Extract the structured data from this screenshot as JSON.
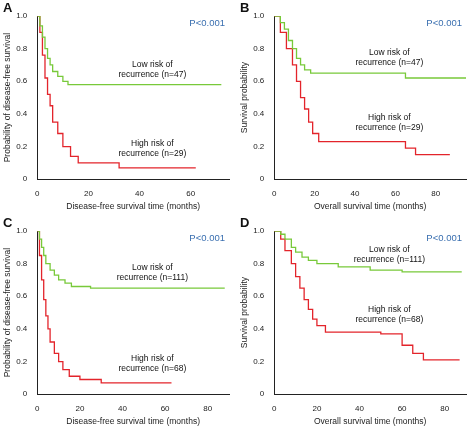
{
  "chart_data": [
    {
      "type": "line",
      "title": "A",
      "annotation": "P<0.001",
      "x_label": "Disease-free survival time (months)",
      "y_label": "Probability of disease-free survival",
      "xlim": [
        0,
        75
      ],
      "xticks": [
        0,
        20,
        40,
        60
      ],
      "ylim": [
        0,
        1
      ],
      "yticks": [
        0,
        0.2,
        0.4,
        0.6,
        0.8,
        {
          "value": 1,
          "label": "1.0"
        }
      ],
      "grid": false,
      "legend": false,
      "line_style": "stepped",
      "series": [
        {
          "name": "Low risk of recurrence (n=47)",
          "color": "#78c93a",
          "x": [
            0,
            1,
            2,
            3,
            4,
            5,
            6,
            8,
            10,
            12,
            72
          ],
          "values": [
            1,
            0.94,
            0.87,
            0.8,
            0.74,
            0.7,
            0.66,
            0.63,
            0.6,
            0.58,
            0.58
          ]
        },
        {
          "name": "High risk of recurrence (n=29)",
          "color": "#e3242b",
          "x": [
            0,
            1,
            2,
            3,
            4,
            5,
            6,
            8,
            10,
            13,
            16,
            32,
            62
          ],
          "values": [
            1,
            0.9,
            0.76,
            0.62,
            0.52,
            0.45,
            0.35,
            0.28,
            0.2,
            0.14,
            0.1,
            0.07,
            0.07
          ]
        }
      ]
    },
    {
      "type": "line",
      "title": "B",
      "annotation": "P<0.001",
      "x_label": "Overall survival time (months)",
      "y_label": "Survival probability",
      "xlim": [
        0,
        95
      ],
      "xticks": [
        0,
        20,
        40,
        60,
        80
      ],
      "ylim": [
        0,
        1
      ],
      "yticks": [
        0,
        0.2,
        0.4,
        0.6,
        0.8,
        {
          "value": 1,
          "label": "1.0"
        }
      ],
      "grid": false,
      "legend": false,
      "line_style": "stepped",
      "series": [
        {
          "name": "Low risk of recurrence (n=47)",
          "color": "#78c93a",
          "x": [
            0,
            3,
            5,
            7,
            9,
            11,
            13,
            15,
            18,
            60,
            65,
            95
          ],
          "values": [
            1,
            0.96,
            0.92,
            0.85,
            0.8,
            0.74,
            0.7,
            0.67,
            0.65,
            0.65,
            0.62,
            0.62
          ]
        },
        {
          "name": "High risk of recurrence (n=29)",
          "color": "#e3242b",
          "x": [
            0,
            3,
            6,
            9,
            11,
            13,
            15,
            17,
            19,
            22,
            60,
            65,
            70,
            87
          ],
          "values": [
            1,
            0.9,
            0.8,
            0.7,
            0.6,
            0.5,
            0.43,
            0.35,
            0.28,
            0.23,
            0.23,
            0.19,
            0.15,
            0.15
          ]
        }
      ]
    },
    {
      "type": "line",
      "title": "C",
      "annotation": "P<0.001",
      "x_label": "Disease-free survival time (months)",
      "y_label": "Probability of disease-free survival",
      "xlim": [
        0,
        90
      ],
      "xticks": [
        0,
        20,
        40,
        60,
        80
      ],
      "ylim": [
        0,
        1
      ],
      "yticks": [
        0,
        0.2,
        0.4,
        0.6,
        0.8,
        {
          "value": 1,
          "label": "1.0"
        }
      ],
      "grid": false,
      "legend": false,
      "line_style": "stepped",
      "series": [
        {
          "name": "Low risk of recurrence (n=111)",
          "color": "#78c93a",
          "x": [
            0,
            1,
            2,
            3,
            4,
            6,
            8,
            10,
            13,
            16,
            25,
            88
          ],
          "values": [
            1,
            0.95,
            0.9,
            0.85,
            0.8,
            0.76,
            0.73,
            0.7,
            0.68,
            0.66,
            0.65,
            0.65
          ]
        },
        {
          "name": "High risk of recurrence (n=68)",
          "color": "#e3242b",
          "x": [
            0,
            1,
            2,
            3,
            4,
            5,
            6,
            8,
            10,
            12,
            15,
            20,
            30,
            63
          ],
          "values": [
            1,
            0.85,
            0.7,
            0.58,
            0.48,
            0.4,
            0.32,
            0.25,
            0.2,
            0.15,
            0.11,
            0.09,
            0.07,
            0.07
          ]
        }
      ]
    },
    {
      "type": "line",
      "title": "D",
      "annotation": "P<0.001",
      "x_label": "Overall survival time (months)",
      "y_label": "Survival probability",
      "xlim": [
        0,
        90
      ],
      "xticks": [
        0,
        20,
        40,
        60,
        80
      ],
      "ylim": [
        0,
        1
      ],
      "yticks": [
        0,
        0.2,
        0.4,
        0.6,
        0.8,
        {
          "value": 1,
          "label": "1.0"
        }
      ],
      "grid": false,
      "legend": false,
      "line_style": "stepped",
      "series": [
        {
          "name": "Low risk of recurrence (n=111)",
          "color": "#78c93a",
          "x": [
            0,
            3,
            5,
            8,
            10,
            13,
            16,
            20,
            30,
            45,
            60,
            88
          ],
          "values": [
            1,
            0.98,
            0.95,
            0.9,
            0.87,
            0.84,
            0.82,
            0.8,
            0.78,
            0.76,
            0.75,
            0.75
          ]
        },
        {
          "name": "High risk of recurrence (n=68)",
          "color": "#e3242b",
          "x": [
            0,
            3,
            5,
            8,
            10,
            12,
            14,
            16,
            18,
            20,
            24,
            50,
            60,
            65,
            70,
            87
          ],
          "values": [
            1,
            0.95,
            0.88,
            0.8,
            0.72,
            0.65,
            0.58,
            0.52,
            0.46,
            0.42,
            0.38,
            0.37,
            0.3,
            0.25,
            0.21,
            0.21
          ]
        }
      ]
    }
  ]
}
